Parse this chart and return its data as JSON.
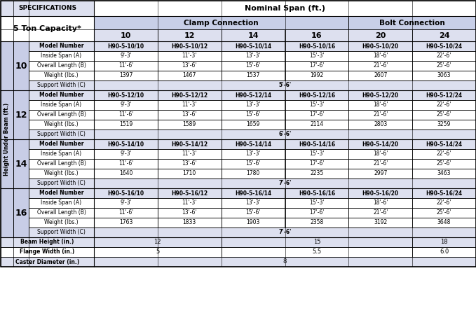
{
  "title_specs": "SPECIFICATIONS",
  "title_nominal": "Nominal Span (ft.)",
  "title_capacity": "5 Ton Capacity*",
  "title_clamp": "Clamp Connection",
  "title_bolt": "Bolt Connection",
  "title_hub": "Height Under Beam (ft.)",
  "span_cols": [
    "10",
    "12",
    "14",
    "16",
    "20",
    "24"
  ],
  "row_labels": [
    "Model Number",
    "Inside Span (A)",
    "Overall Length (B)",
    "Weight (lbs.)",
    "Support Width (C)"
  ],
  "hub_groups": [
    {
      "hub": "10",
      "models": [
        "H90-5-10/10",
        "H90-5-10/12",
        "H90-5-10/14",
        "H90-5-10/16",
        "H90-5-10/20",
        "H90-5-10/24"
      ],
      "inside_span": [
        "9'-3'",
        "11'-3'",
        "13'-3'",
        "15'-3'",
        "18'-6'",
        "22'-6'"
      ],
      "overall_length": [
        "11'-6'",
        "13'-6'",
        "15'-6'",
        "17'-6'",
        "21'-6'",
        "25'-6'"
      ],
      "weight": [
        "1397",
        "1467",
        "1537",
        "1992",
        "2607",
        "3063"
      ],
      "support_width": "5'-6'"
    },
    {
      "hub": "12",
      "models": [
        "H90-5-12/10",
        "H90-5-12/12",
        "H90-5-12/14",
        "H90-5-12/16",
        "H90-5-12/20",
        "H90-5-12/24"
      ],
      "inside_span": [
        "9'-3'",
        "11'-3'",
        "13'-3'",
        "15'-3'",
        "18'-6'",
        "22'-6'"
      ],
      "overall_length": [
        "11'-6'",
        "13'-6'",
        "15'-6'",
        "17'-6'",
        "21'-6'",
        "25'-6'"
      ],
      "weight": [
        "1519",
        "1589",
        "1659",
        "2114",
        "2803",
        "3259"
      ],
      "support_width": "6'-6'"
    },
    {
      "hub": "14",
      "models": [
        "H90-5-14/10",
        "H90-5-14/12",
        "H90-5-14/14",
        "H90-5-14/16",
        "H90-5-14/20",
        "H90-5-14/24"
      ],
      "inside_span": [
        "9'-3'",
        "11'-3'",
        "13'-3'",
        "15'-3'",
        "18'-6'",
        "22'-6'"
      ],
      "overall_length": [
        "11'-6'",
        "13'-6'",
        "15'-6'",
        "17'-6'",
        "21'-6'",
        "25'-6'"
      ],
      "weight": [
        "1640",
        "1710",
        "1780",
        "2235",
        "2997",
        "3463"
      ],
      "support_width": "7'-6'"
    },
    {
      "hub": "16",
      "models": [
        "H90-5-16/10",
        "H90-5-16/12",
        "H90-5-16/14",
        "H90-5-16/16",
        "H90-5-16/20",
        "H90-5-16/24"
      ],
      "inside_span": [
        "9'-3'",
        "11'-3'",
        "13'-3'",
        "15'-3'",
        "18'-6'",
        "22'-6'"
      ],
      "overall_length": [
        "11'-6'",
        "13'-6'",
        "15'-6'",
        "17'-6'",
        "21'-6'",
        "25'-6'"
      ],
      "weight": [
        "1763",
        "1833",
        "1903",
        "2358",
        "3192",
        "3648"
      ],
      "support_width": "7'-6'"
    }
  ],
  "bot_rows": [
    {
      "label": "Beam Height (in.)",
      "cells": [
        [
          0,
          1,
          "12"
        ],
        [
          2,
          4,
          "15"
        ],
        [
          5,
          5,
          "18"
        ]
      ]
    },
    {
      "label": "Flange Width (in.)",
      "cells": [
        [
          0,
          1,
          "5"
        ],
        [
          2,
          4,
          "5.5"
        ],
        [
          5,
          5,
          "6.0"
        ]
      ]
    },
    {
      "label": "Caster Diameter (in.)",
      "cells": [
        [
          0,
          5,
          "8"
        ]
      ]
    }
  ],
  "color_nominal_bg": "#ffffff",
  "color_clamp_bg": "#c8cfe8",
  "color_bolt_bg": "#c8cfe8",
  "color_col_hdr_bg": "#dde0ef",
  "color_specs_bg": "#dde0ef",
  "color_capacity_bg": "#ffffff",
  "color_hub_band_bg": "#c8cde6",
  "color_hub_num_bg": "#c8cde6",
  "color_model_bg": "#dde0ef",
  "color_data_bg": "#ffffff",
  "color_support_bg": "#dde0ef",
  "color_bot_odd_bg": "#dde0ef",
  "color_bot_even_bg": "#ffffff",
  "color_border": "#000000"
}
